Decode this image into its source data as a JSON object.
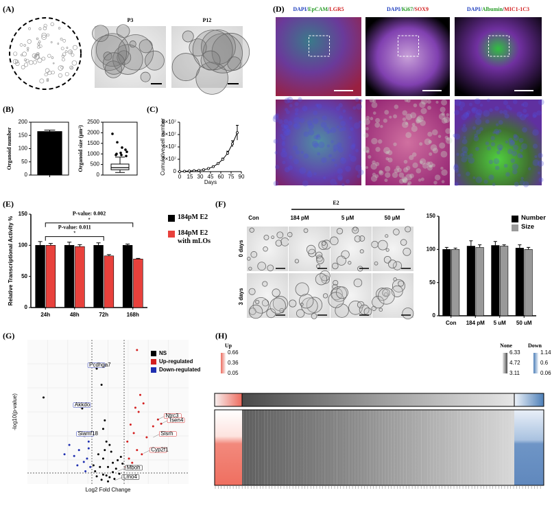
{
  "figure": {
    "panel_labels": [
      "(A)",
      "(B)",
      "(C)",
      "(D)",
      "(E)",
      "(F)",
      "(G)",
      "(H)"
    ],
    "a_passages": [
      "P3",
      "P12"
    ],
    "d_stains": [
      [
        {
          "t": "DAPI/",
          "c": "#1f3fbf"
        },
        {
          "t": "EpCAM",
          "c": "#2a9d2a"
        },
        {
          "t": "/",
          "c": "#333333"
        },
        {
          "t": "LGR5",
          "c": "#d22222"
        }
      ],
      [
        {
          "t": "DAPI/",
          "c": "#1f3fbf"
        },
        {
          "t": "Ki67",
          "c": "#2a9d2a"
        },
        {
          "t": "/",
          "c": "#333333"
        },
        {
          "t": "SOX9",
          "c": "#d22222"
        }
      ],
      [
        {
          "t": "DAPI/",
          "c": "#1f3fbf"
        },
        {
          "t": "Albumin",
          "c": "#2a9d2a"
        },
        {
          "t": "/",
          "c": "#333333"
        },
        {
          "t": "MIC1-1C3",
          "c": "#d22222"
        }
      ]
    ],
    "f_treatment": "E2",
    "f_columns": [
      "Con",
      "184 pM",
      "5 μM",
      "50 μM"
    ],
    "f_rows": [
      "0 days",
      "3 days"
    ],
    "h_groups": [
      "Up",
      "None",
      "Down"
    ],
    "h_scales": [
      [
        0.66,
        0.36,
        0.05
      ],
      [
        6.33,
        4.72,
        3.11
      ],
      [
        1.14,
        0.6,
        0.06
      ]
    ]
  },
  "chart_data": [
    {
      "type": "bar",
      "ylabel": "Organoid number",
      "categories": [
        null
      ],
      "series": [
        {
          "name": null,
          "color": "#000000",
          "values": [
            165
          ],
          "errors": [
            5
          ]
        }
      ],
      "ylim": [
        0,
        200
      ],
      "yticks": [
        0,
        50,
        100,
        150,
        200
      ]
    },
    {
      "type": "box",
      "ylabel": "Organoid size (μm²)",
      "box": {
        "min": 120,
        "q1": 250,
        "median": 350,
        "q3": 520,
        "max": 850
      },
      "outliers": [
        1950,
        1550,
        1300,
        1100,
        1000,
        950,
        900,
        950,
        1050,
        1200
      ],
      "ylim": [
        0,
        2500
      ],
      "yticks": [
        0,
        500,
        1000,
        1500,
        2000,
        2500
      ]
    },
    {
      "type": "line",
      "ylabel": "Cumulative cell number",
      "xlabel": "Days",
      "x": [
        0,
        7,
        14,
        21,
        28,
        35,
        42,
        49,
        56,
        63,
        70,
        77,
        84
      ],
      "values": [
        0,
        500000,
        1000000,
        1500000,
        2000000,
        3000000,
        5000000,
        8000000,
        13000000,
        20000000,
        30000000,
        45000000,
        63000000
      ],
      "errors": [
        0,
        0,
        0,
        0,
        0,
        0,
        0,
        500000,
        1000000,
        2000000,
        3000000,
        5000000,
        12000000
      ],
      "color": "#000000",
      "xlim": [
        0,
        90
      ],
      "xticks": [
        0,
        15,
        30,
        45,
        60,
        75,
        90
      ],
      "ylim": [
        0,
        80000000
      ],
      "yticks": [
        0,
        {
          "value": 20000000,
          "label": "2×10⁷"
        },
        {
          "value": 40000000,
          "label": "4×10⁷"
        },
        {
          "value": 60000000,
          "label": "6×10⁷"
        },
        {
          "value": 80000000,
          "label": "8×10⁷"
        }
      ]
    },
    {
      "type": "bar",
      "ylabel": "Relative Transcriptional Activity %",
      "categories": [
        "24h",
        "48h",
        "72h",
        "168h"
      ],
      "series": [
        {
          "name": "184pM E2",
          "color": "#000000",
          "values": [
            100,
            100,
            100,
            100
          ],
          "errors": [
            6,
            5,
            4,
            2
          ]
        },
        {
          "name": "184pM E2 with mLOs",
          "color": "#e8413c",
          "values": [
            100,
            98,
            83,
            78
          ],
          "errors": [
            3,
            3,
            2,
            1
          ]
        }
      ],
      "brackets": [
        {
          "label": "P-value: 0.002",
          "star": "*",
          "from": "24h",
          "to": "168h",
          "y": 136
        },
        {
          "label": "P-value: 0.011",
          "star": "*",
          "from": "24h",
          "to": "72h",
          "y": 114
        }
      ],
      "ylim": [
        0,
        150
      ],
      "yticks": [
        0,
        50,
        100,
        150
      ]
    },
    {
      "type": "bar",
      "categories": [
        "Con",
        "184 pM",
        "5 uM",
        "50 uM"
      ],
      "series": [
        {
          "name": "Number",
          "color": "#000000",
          "values": [
            100,
            105,
            106,
            102
          ],
          "errors": [
            3,
            8,
            6,
            5
          ]
        },
        {
          "name": "Size",
          "color": "#999999",
          "values": [
            100,
            103,
            105,
            100
          ],
          "errors": [
            2,
            4,
            2,
            3
          ]
        }
      ],
      "ylim": [
        0,
        150
      ],
      "yticks": [
        0,
        50,
        100,
        150
      ]
    },
    {
      "type": "volcano",
      "xlabel": "Log2 Fold Change",
      "ylabel": "-log10(p-value)",
      "xlim": [
        -5,
        5
      ],
      "ylim": [
        0,
        17
      ],
      "fc_threshold": 1,
      "p_threshold": 1.3,
      "series": [
        {
          "name": "NS",
          "color": "#000000",
          "x": [
            -0.8,
            -0.5,
            -0.3,
            -0.1,
            0.1,
            0.3,
            0.5,
            0.7,
            -0.6,
            -0.2,
            0.2,
            0.6,
            -0.4,
            0,
            0.4,
            -0.9,
            0.9,
            -0.3,
            0.3,
            0,
            -0.7,
            0.8,
            -0.1,
            0.1,
            -0.3,
            -4.0,
            -0.7,
            -0.4,
            -1.6,
            -0.2
          ],
          "values": [
            1.5,
            2,
            3,
            1,
            0.8,
            2.5,
            1.8,
            1.2,
            3.5,
            4,
            3.8,
            2.8,
            0.5,
            0.3,
            0.6,
            2.2,
            2.4,
            1.1,
            1.4,
            2,
            0.9,
            3.2,
            5,
            4.6,
            6.5,
            10.2,
            13.6,
            11.7,
            8.9,
            7.5
          ]
        },
        {
          "name": "Up-regulated",
          "color": "#d42020",
          "x": [
            1.1,
            1.3,
            1.5,
            1.8,
            2.1,
            1.2,
            1.6,
            2.4,
            1.4,
            2.8,
            3.1,
            3.3,
            1.9,
            2.2,
            1.7,
            2.0,
            1.8
          ],
          "values": [
            2,
            3,
            2.5,
            4,
            3.5,
            5,
            6,
            5.5,
            7,
            6.8,
            7.6,
            7.1,
            8.5,
            9.5,
            9,
            10.5,
            15.8
          ]
        },
        {
          "name": "Down-regulated",
          "color": "#1f2fb0",
          "x": [
            -1.1,
            -1.3,
            -1.5,
            -1.8,
            -2.1,
            -1.2,
            -2.4,
            -1.6,
            -1.4,
            -2.7,
            -1.9,
            -1.2
          ],
          "values": [
            2,
            3,
            2.6,
            4,
            3.3,
            5,
            4.6,
            6,
            1.5,
            3.5,
            2.2,
            4.2
          ]
        }
      ],
      "genes": [
        {
          "label": "Pcdhga7",
          "x": -0.7,
          "y": 13.6,
          "side": "down"
        },
        {
          "label": "Akkdo",
          "x": -1.6,
          "y": 8.9,
          "side": "down"
        },
        {
          "label": "Slamf18",
          "x": -1.4,
          "y": 5.5,
          "side": "down"
        },
        {
          "label": "Ntrc3",
          "x": 3.1,
          "y": 7.6,
          "side": "up"
        },
        {
          "label": "Tsen4",
          "x": 3.3,
          "y": 7.1,
          "side": "up"
        },
        {
          "label": "Slsrh",
          "x": 2.8,
          "y": 5.5,
          "side": "up"
        },
        {
          "label": "Cyp2f1",
          "x": 2.2,
          "y": 3.6,
          "side": "up"
        },
        {
          "label": "Mboh",
          "x": 0.6,
          "y": 1.5,
          "side": "ns"
        },
        {
          "label": "Lmo4",
          "x": 0.4,
          "y": 0.4,
          "side": "ns"
        }
      ]
    }
  ]
}
